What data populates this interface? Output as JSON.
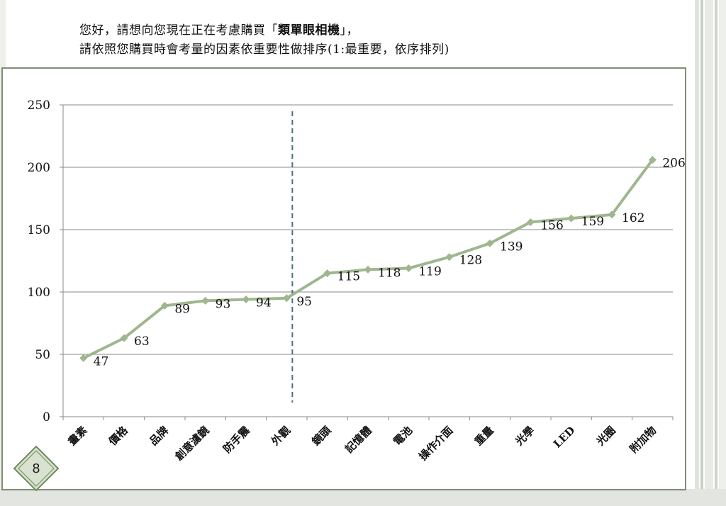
{
  "header": {
    "line1_prefix": "您好，請想向您現在正在考慮購買「",
    "line1_bold": "類單眼相機",
    "line1_suffix": "」，",
    "line2": "請依照您購買時會考量的因素依重要性做排序(1:最重要，依序排列)"
  },
  "slide_number": "8",
  "chart_data": {
    "type": "line",
    "categories": [
      "畫素",
      "價格",
      "品牌",
      "創意濾鏡",
      "防手震",
      "外觀",
      "鏡頭",
      "記憶體",
      "電池",
      "操作介面",
      "重量",
      "光學",
      "LED",
      "光圈",
      "附加物"
    ],
    "values": [
      47,
      63,
      89,
      93,
      94,
      95,
      115,
      118,
      119,
      128,
      139,
      156,
      159,
      162,
      206
    ],
    "ylim": [
      0,
      250
    ],
    "yticks": [
      0,
      50,
      100,
      150,
      200,
      250
    ],
    "grid": true,
    "divider_after_category": "外觀",
    "line_color": "#9fb68f",
    "divider_color": "#4a6f8a"
  }
}
